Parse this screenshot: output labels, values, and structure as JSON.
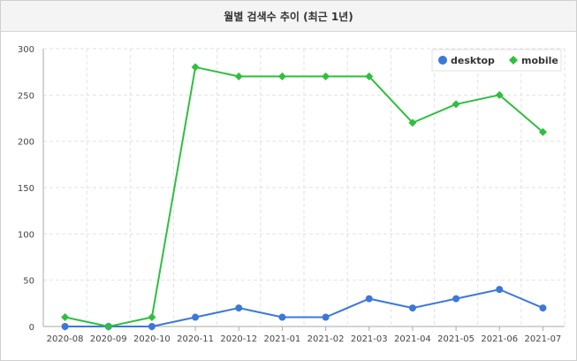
{
  "header": {
    "title": "월별 검색수 추이 (최근 1년)"
  },
  "chart_data": {
    "type": "line",
    "title": "월별 검색수 추이 (최근 1년)",
    "categories": [
      "2020-08",
      "2020-09",
      "2020-10",
      "2020-11",
      "2020-12",
      "2021-01",
      "2021-02",
      "2021-03",
      "2021-04",
      "2021-05",
      "2021-06",
      "2021-07"
    ],
    "series": [
      {
        "name": "desktop",
        "color": "#3b78d8",
        "marker": "circle",
        "values": [
          0,
          0,
          0,
          10,
          20,
          10,
          10,
          30,
          20,
          30,
          40,
          20
        ]
      },
      {
        "name": "mobile",
        "color": "#2fbf3f",
        "marker": "diamond",
        "values": [
          10,
          0,
          10,
          280,
          270,
          270,
          270,
          270,
          220,
          240,
          250,
          210
        ]
      }
    ],
    "ylim": [
      0,
      300
    ],
    "yticks": [
      0,
      50,
      100,
      150,
      200,
      250,
      300
    ],
    "grid": true,
    "legend": "top-right"
  }
}
